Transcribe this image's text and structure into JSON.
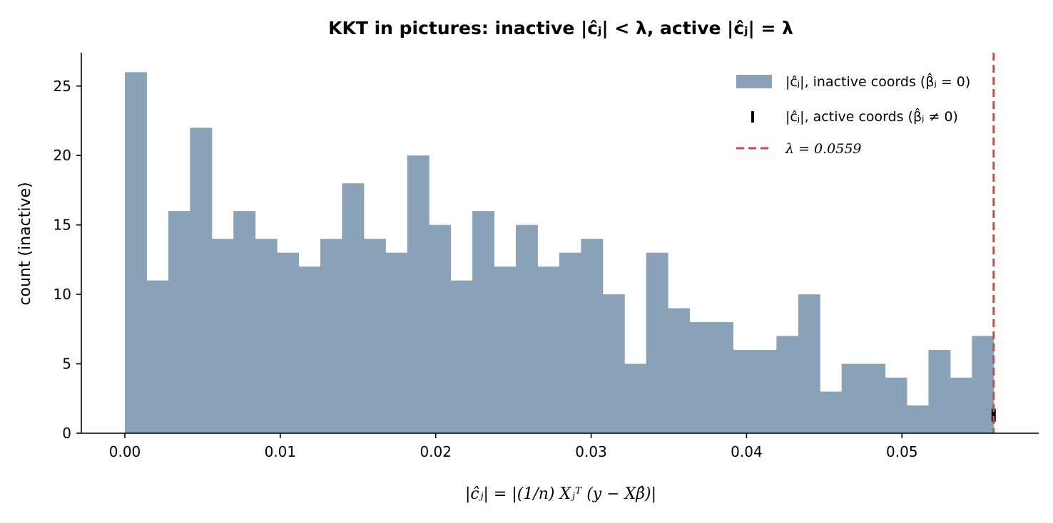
{
  "chart_data": {
    "type": "bar",
    "title": "KKT in pictures: inactive |ĉⱼ| < λ, active |ĉⱼ| = λ",
    "xlabel": "|ĉⱼ| = |(1/n) Xⱼᵀ (y − Xβ̂)|",
    "ylabel": "count (inactive)",
    "xlim": [
      -0.0028,
      0.0588
    ],
    "ylim": [
      0,
      27.4
    ],
    "xticks": [
      0.0,
      0.01,
      0.02,
      0.03,
      0.04,
      0.05
    ],
    "xtick_labels": [
      "0.00",
      "0.01",
      "0.02",
      "0.03",
      "0.04",
      "0.05"
    ],
    "yticks": [
      0,
      5,
      10,
      15,
      20,
      25
    ],
    "ytick_labels": [
      "0",
      "5",
      "10",
      "15",
      "20",
      "25"
    ],
    "bin_width": 0.0013975,
    "series": [
      {
        "name": "|ĉⱼ|, inactive coords (β̂ⱼ = 0)",
        "color": "#8aa2b8",
        "bin_starts": [
          0.0,
          0.0013975,
          0.002795,
          0.0041925,
          0.00559,
          0.0069875,
          0.008385,
          0.0097825,
          0.01118,
          0.0125775,
          0.013975,
          0.0153725,
          0.01677,
          0.0181675,
          0.019565,
          0.0209625,
          0.02236,
          0.0237575,
          0.025155,
          0.0265525,
          0.02795,
          0.0293475,
          0.030745,
          0.0321425,
          0.03354,
          0.0349375,
          0.036335,
          0.0377325,
          0.03913,
          0.0405275,
          0.041925,
          0.0433225,
          0.04472,
          0.0461175,
          0.047515,
          0.0489125,
          0.05031,
          0.0517075,
          0.053105,
          0.0545025
        ],
        "values": [
          26,
          11,
          16,
          22,
          14,
          16,
          14,
          13,
          12,
          14,
          18,
          14,
          13,
          20,
          15,
          11,
          16,
          12,
          15,
          12,
          13,
          14,
          10,
          5,
          13,
          9,
          8,
          8,
          6,
          6,
          7,
          10,
          3,
          5,
          5,
          4,
          2,
          6,
          4,
          7
        ]
      },
      {
        "name": "|ĉⱼ|, active coords (β̂ⱼ ≠ 0)",
        "color": "#000000",
        "marker": "|",
        "x": [
          0.0559
        ],
        "y": [
          1.3
        ]
      }
    ],
    "lambda": {
      "label": "λ = 0.0559",
      "value": 0.0559,
      "color": "#c44e46",
      "style": "dashed"
    },
    "legend_placement": "top-right",
    "grid": false
  }
}
